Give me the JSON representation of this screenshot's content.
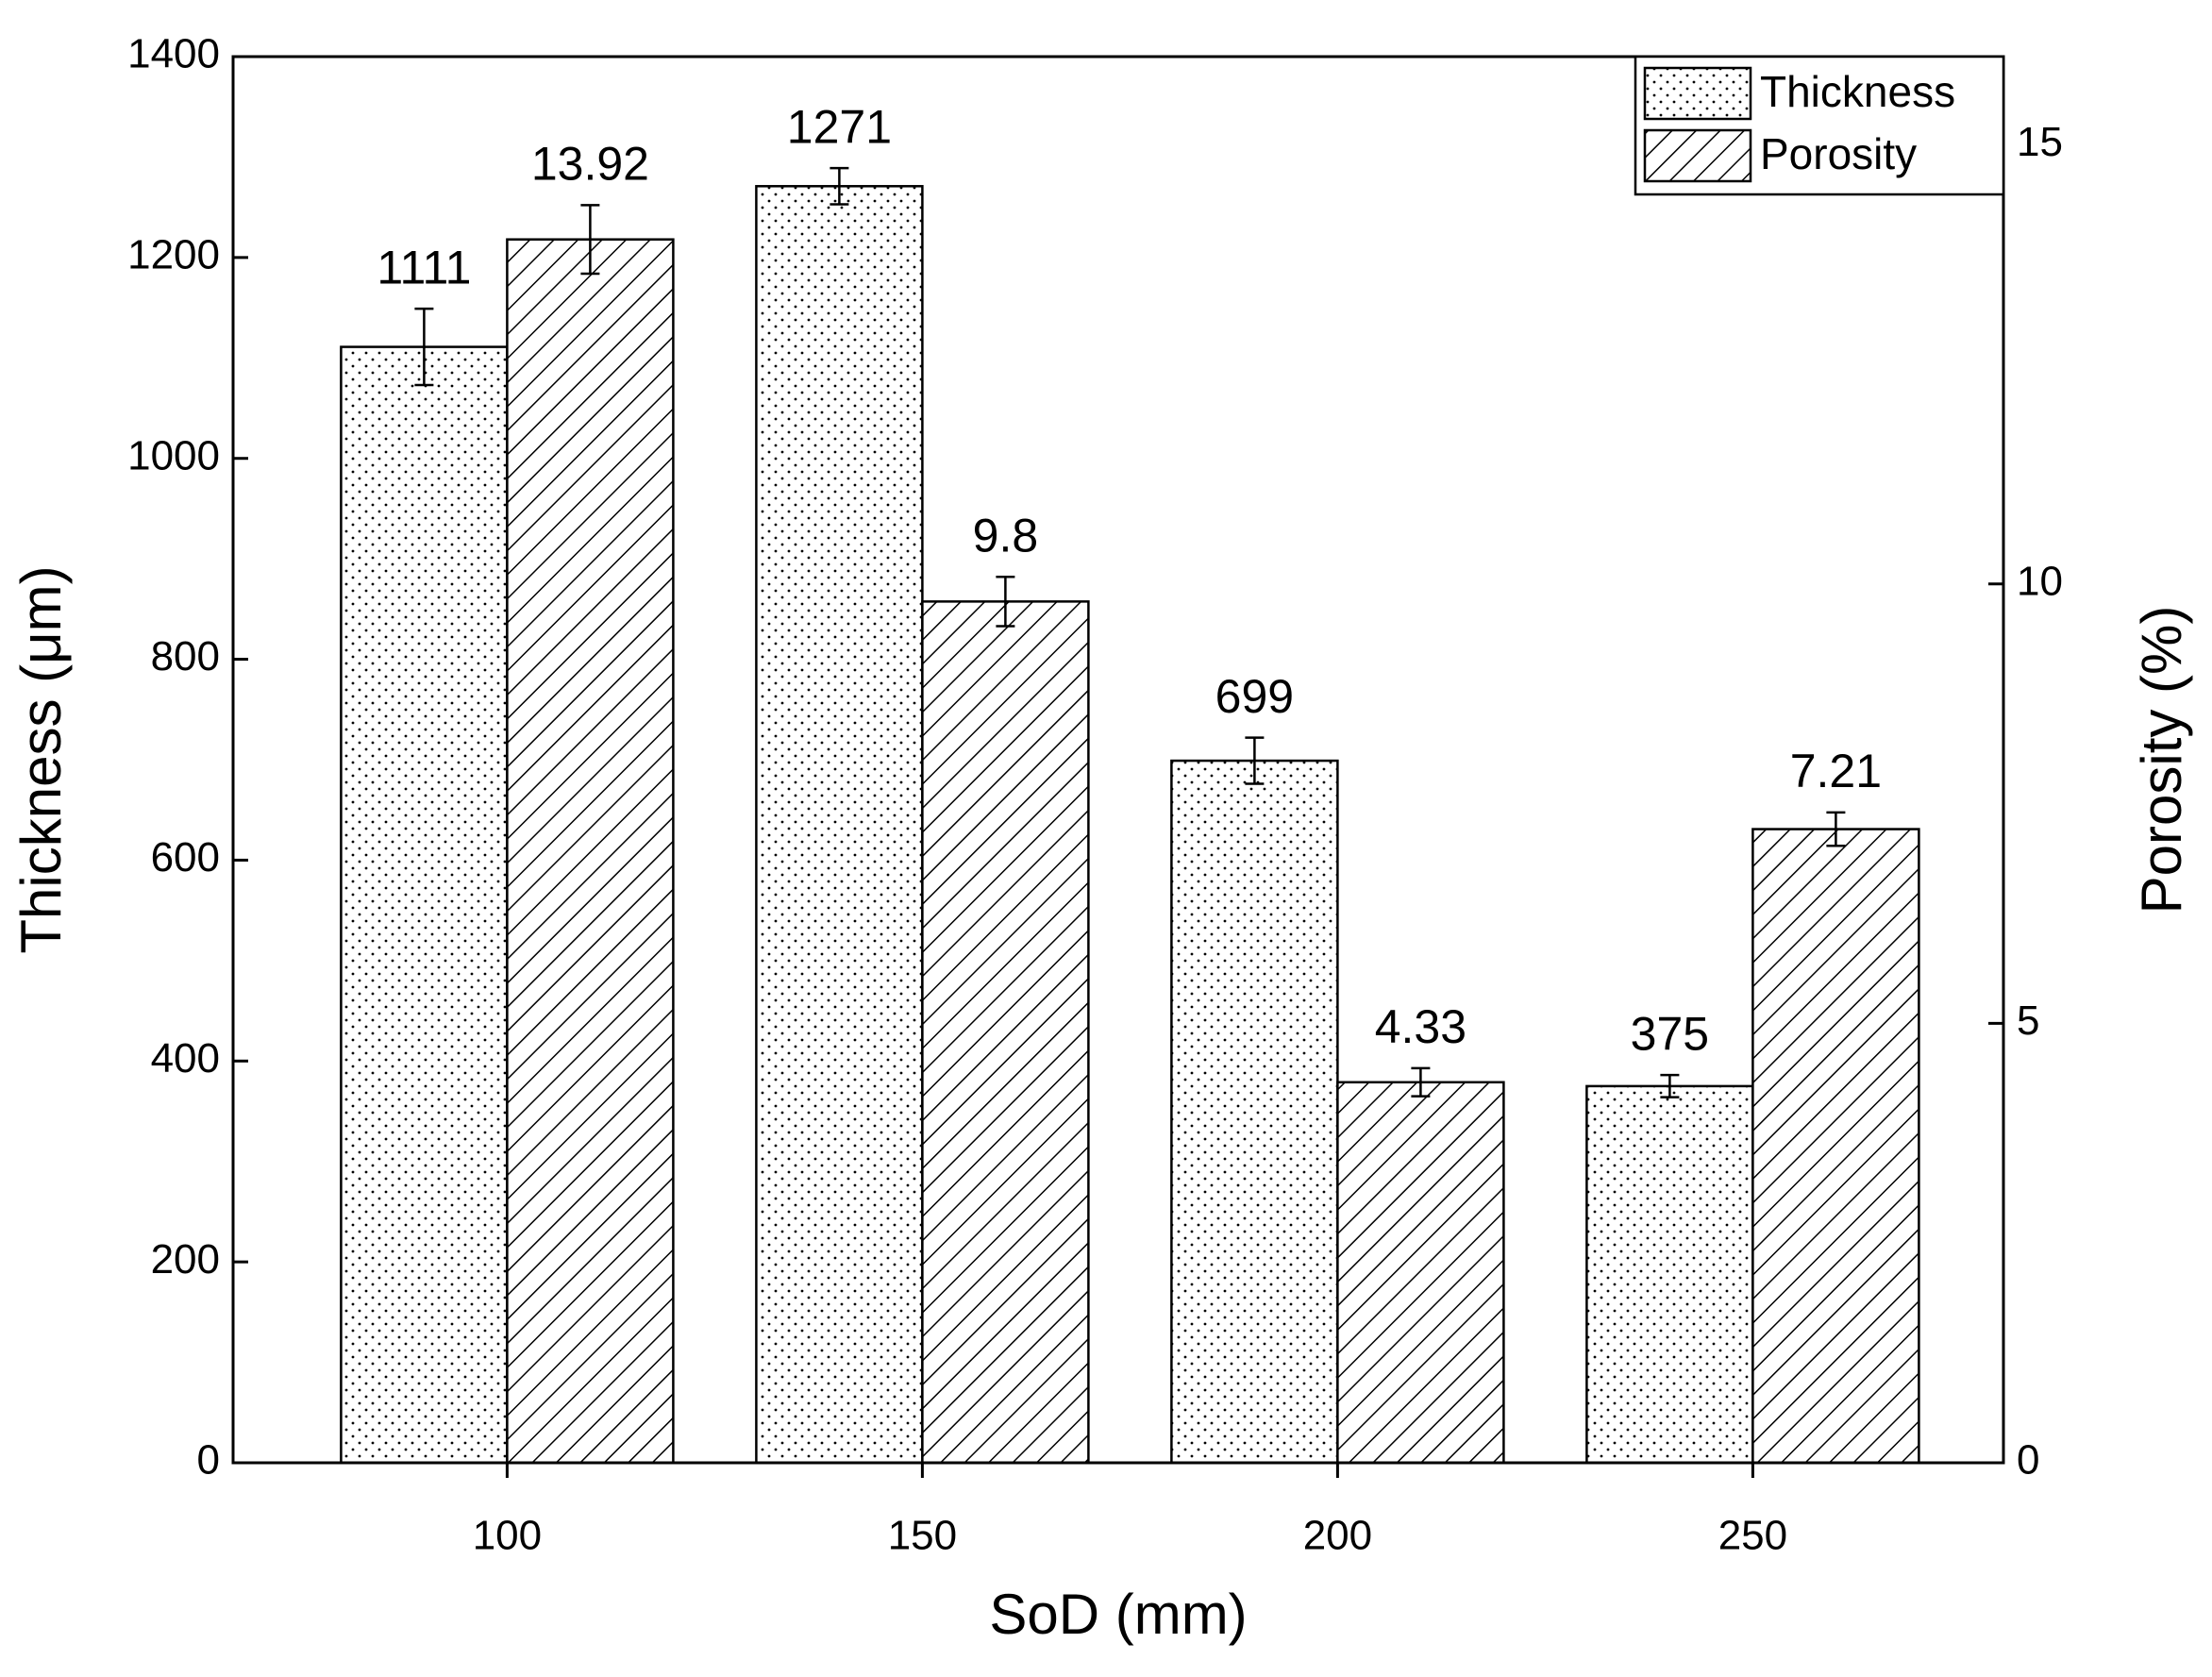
{
  "chart_data": {
    "type": "bar",
    "x_label": "SoD (mm)",
    "y_label": "Thickness (μm)",
    "y2_label": "Porosity (%)",
    "categories": [
      "100",
      "150",
      "200",
      "250"
    ],
    "series": [
      {
        "name": "Thickness",
        "color": "#000000",
        "pattern": "dots",
        "values": [
          1111,
          1271,
          699,
          375
        ],
        "errors": [
          38,
          18,
          23,
          11
        ]
      },
      {
        "name": "Porosity",
        "color": "#000000",
        "pattern": "hatch",
        "axis": "y2",
        "values": [
          13.92,
          9.8,
          4.33,
          7.21
        ],
        "errors": [
          0.39,
          0.28,
          0.16,
          0.19
        ]
      }
    ],
    "ylim": [
      0,
      1400
    ],
    "yticks": [
      0,
      200,
      400,
      600,
      800,
      1000,
      1200,
      1400
    ],
    "y2lim": [
      0,
      16
    ],
    "y2ticks": [
      0,
      5,
      10,
      15
    ],
    "legend": "upper right",
    "grid": false
  }
}
